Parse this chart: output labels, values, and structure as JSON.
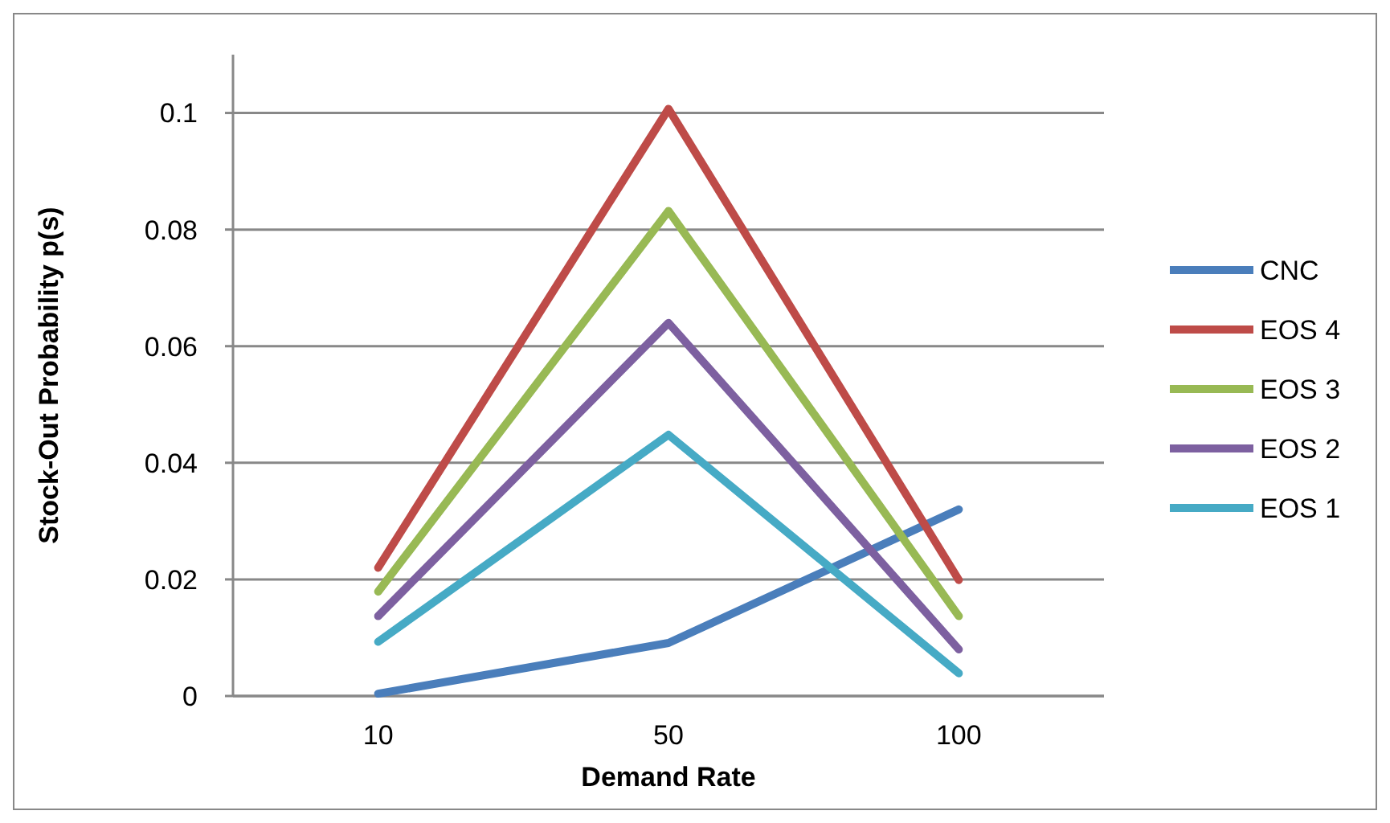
{
  "chart_data": {
    "type": "line",
    "xlabel": "Demand Rate",
    "ylabel": "Stock-Out Probability p(s)",
    "categories": [
      "10",
      "50",
      "100"
    ],
    "series": [
      {
        "name": "CNC",
        "color": "#4a7ebb",
        "values": [
          0.0004,
          0.0091,
          0.032
        ]
      },
      {
        "name": "EOS 4",
        "color": "#be4b48",
        "values": [
          0.022,
          0.1007,
          0.0199
        ]
      },
      {
        "name": "EOS 3",
        "color": "#98b954",
        "values": [
          0.0179,
          0.0832,
          0.0137
        ]
      },
      {
        "name": "EOS 2",
        "color": "#7d60a0",
        "values": [
          0.0137,
          0.064,
          0.008
        ]
      },
      {
        "name": "EOS 1",
        "color": "#46aac5",
        "values": [
          0.0093,
          0.0448,
          0.0039
        ]
      }
    ],
    "ylim": [
      0,
      0.11
    ],
    "yticks": [
      0,
      0.02,
      0.04,
      0.06,
      0.08,
      0.1
    ],
    "grid": "y",
    "legend": "right",
    "marker": "none",
    "line_style": "solid"
  }
}
